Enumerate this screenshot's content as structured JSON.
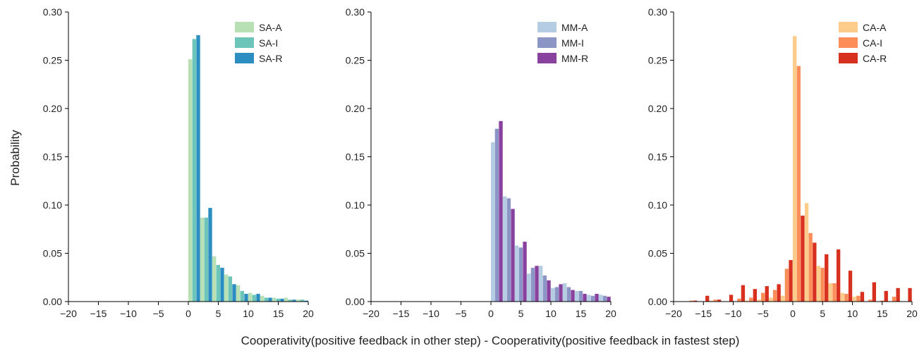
{
  "figure": {
    "ylabel": "Probability",
    "xlabel": "Cooperativity(positive feedback in other step) - Cooperativity(positive feedback in fastest step)"
  },
  "chart_data": [
    {
      "type": "bar",
      "x_ticks": [
        -20,
        -15,
        -10,
        -5,
        0,
        5,
        10,
        15,
        20
      ],
      "y_ticks": [
        "0.00",
        "0.05",
        "0.10",
        "0.15",
        "0.20",
        "0.25",
        "0.30"
      ],
      "xlim": [
        -20,
        20
      ],
      "ylim": [
        0,
        0.3
      ],
      "legend_position": "top-right",
      "bin_centers": [
        1,
        3,
        5,
        7,
        9,
        11,
        13,
        15,
        17,
        19
      ],
      "series": [
        {
          "name": "SA-A",
          "color": "#b7e1b5",
          "values": [
            0.251,
            0.087,
            0.047,
            0.028,
            0.017,
            0.009,
            0.006,
            0.004,
            0.004,
            0.002
          ]
        },
        {
          "name": "SA-I",
          "color": "#6cc5b8",
          "values": [
            0.272,
            0.087,
            0.038,
            0.026,
            0.011,
            0.007,
            0.004,
            0.003,
            0.002,
            0.002
          ]
        },
        {
          "name": "SA-R",
          "color": "#2c8ec0",
          "values": [
            0.276,
            0.097,
            0.035,
            0.018,
            0.008,
            0.008,
            0.004,
            0.003,
            0.002,
            0.001
          ]
        }
      ]
    },
    {
      "type": "bar",
      "x_ticks": [
        -20,
        -15,
        -10,
        -5,
        0,
        5,
        10,
        15,
        20
      ],
      "y_ticks": [
        "0.00",
        "0.05",
        "0.10",
        "0.15",
        "0.20",
        "0.25",
        "0.30"
      ],
      "xlim": [
        -20,
        20
      ],
      "ylim": [
        0,
        0.3
      ],
      "legend_position": "top-right",
      "bin_centers": [
        1,
        3,
        5,
        7,
        9,
        11,
        13,
        15,
        17,
        19
      ],
      "series": [
        {
          "name": "MM-A",
          "color": "#b4cde3",
          "values": [
            0.165,
            0.109,
            0.058,
            0.029,
            0.037,
            0.014,
            0.019,
            0.011,
            0.007,
            0.007
          ]
        },
        {
          "name": "MM-I",
          "color": "#8c96c6",
          "values": [
            0.179,
            0.107,
            0.056,
            0.035,
            0.027,
            0.015,
            0.015,
            0.011,
            0.006,
            0.006
          ]
        },
        {
          "name": "MM-R",
          "color": "#88419d",
          "values": [
            0.187,
            0.096,
            0.062,
            0.037,
            0.022,
            0.018,
            0.012,
            0.008,
            0.008,
            0.005
          ]
        }
      ]
    },
    {
      "type": "bar",
      "x_ticks": [
        -20,
        -15,
        -10,
        -5,
        0,
        5,
        10,
        15,
        20
      ],
      "y_ticks": [
        "0.00",
        "0.05",
        "0.10",
        "0.15",
        "0.20",
        "0.25",
        "0.30"
      ],
      "xlim": [
        -20,
        20
      ],
      "ylim": [
        0,
        0.3
      ],
      "legend_position": "top-right",
      "bin_centers": [
        -17,
        -15,
        -13,
        -11,
        -9,
        -7,
        -5,
        -3,
        -1,
        1,
        3,
        5,
        7,
        9,
        11,
        13,
        15,
        17,
        19
      ],
      "series": [
        {
          "name": "CA-A",
          "color": "#fdcc8a",
          "values": [
            0.0,
            0.0,
            0.001,
            0.0,
            0.0,
            0.001,
            0.002,
            0.004,
            0.006,
            0.275,
            0.102,
            0.037,
            0.019,
            0.009,
            0.005,
            0.0,
            0.0,
            0.0,
            0.0
          ]
        },
        {
          "name": "CA-I",
          "color": "#fc8d59",
          "values": [
            0.001,
            0.0,
            0.002,
            0.0,
            0.003,
            0.004,
            0.009,
            0.012,
            0.034,
            0.244,
            0.071,
            0.035,
            0.019,
            0.008,
            0.006,
            0.002,
            0.001,
            0.005,
            0.0
          ]
        },
        {
          "name": "CA-R",
          "color": "#d7301f",
          "values": [
            0.001,
            0.006,
            0.002,
            0.007,
            0.017,
            0.013,
            0.016,
            0.018,
            0.043,
            0.089,
            0.061,
            0.049,
            0.054,
            0.032,
            0.01,
            0.02,
            0.011,
            0.014,
            0.014
          ]
        }
      ]
    }
  ]
}
